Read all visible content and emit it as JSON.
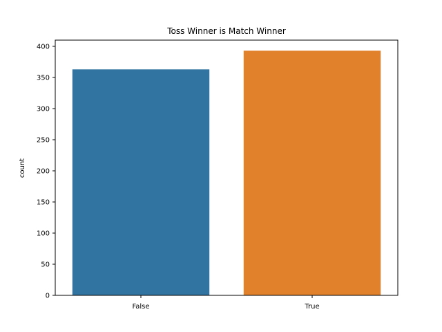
{
  "chart_data": {
    "type": "bar",
    "title": "Toss Winner is Match Winner",
    "xlabel": "",
    "ylabel": "count",
    "categories": [
      "False",
      "True"
    ],
    "values": [
      363,
      393
    ],
    "ylim": [
      0,
      410
    ],
    "yticks": [
      0,
      50,
      100,
      150,
      200,
      250,
      300,
      350,
      400
    ],
    "colors": [
      "#3274a1",
      "#e1812c"
    ],
    "grid": false,
    "legend": "none"
  }
}
